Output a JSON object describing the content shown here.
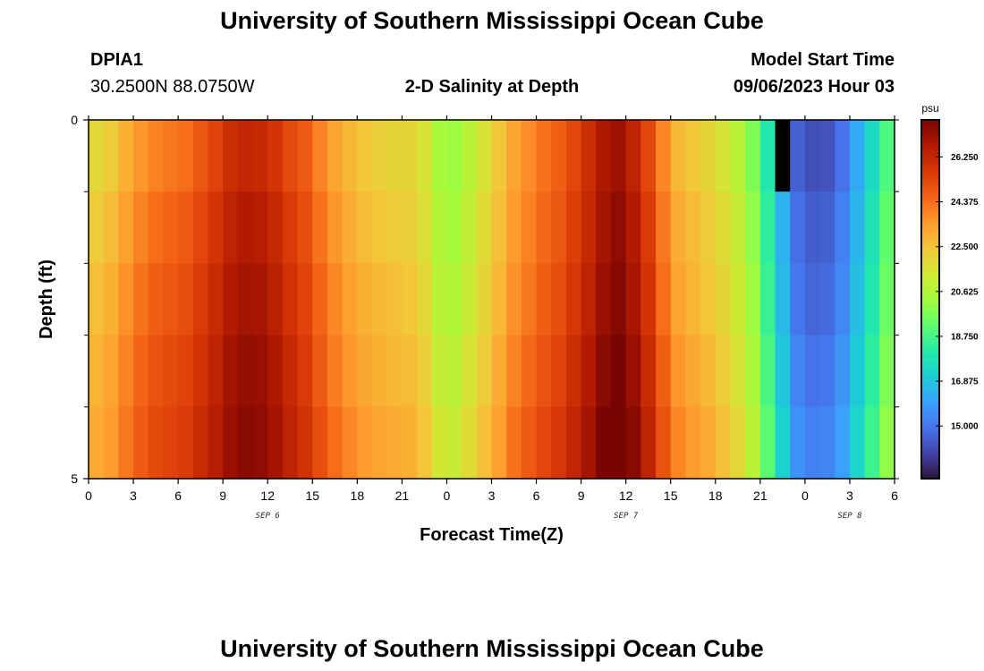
{
  "page": {
    "title_top": "University of Southern Mississippi Ocean Cube",
    "title_bottom": "University of Southern Mississippi Ocean Cube",
    "station_id": "DPIA1",
    "station_coords": "30.2500N  88.0750W",
    "plot_title": "2-D Salinity at Depth",
    "model_start_label": "Model Start Time",
    "model_start_value": "09/06/2023 Hour 03"
  },
  "chart_data": {
    "type": "heatmap",
    "title": "2-D Salinity at Depth",
    "xlabel": "Forecast Time(Z)",
    "ylabel": "Depth (ft)",
    "x_unit": "hours since 09/06/2023 00Z",
    "x_range": [
      0,
      54
    ],
    "y_range": [
      0,
      5
    ],
    "x_tick_values": [
      0,
      3,
      6,
      9,
      12,
      15,
      18,
      21,
      24,
      27,
      30,
      33,
      36,
      39,
      42,
      45,
      48,
      51,
      54
    ],
    "x_tick_labels": [
      "0",
      "3",
      "6",
      "9",
      "12",
      "15",
      "18",
      "21",
      "0",
      "3",
      "6",
      "9",
      "12",
      "15",
      "18",
      "21",
      "0",
      "3",
      "6"
    ],
    "date_labels": [
      {
        "text": "SEP 6",
        "x": 12
      },
      {
        "text": "SEP 7",
        "x": 36
      },
      {
        "text": "SEP 8",
        "x": 51
      }
    ],
    "y_tick_labels": [
      "0",
      "5"
    ],
    "y_tick_values": [
      0,
      5
    ],
    "y_minor_ticks": [
      1,
      2,
      3,
      4
    ],
    "depth_layers": [
      0,
      1,
      2,
      3,
      4
    ],
    "time_step_hours": 1,
    "surface_profile_psu": [
      22.9,
      23.3,
      24.0,
      24.6,
      25.0,
      25.2,
      25.4,
      25.7,
      26.2,
      26.8,
      27.1,
      27.0,
      26.6,
      26.0,
      25.3,
      24.5,
      23.8,
      23.3,
      22.9,
      22.7,
      22.5,
      22.2,
      21.7,
      20.6,
      20.4,
      21.0,
      21.8,
      22.6,
      23.3,
      23.8,
      24.3,
      24.7,
      25.3,
      26.0,
      26.8,
      27.0,
      26.3,
      25.2,
      23.8,
      22.7,
      22.3,
      21.9,
      21.3,
      20.6,
      19.5,
      17.8,
      15.9,
      14.3,
      13.9,
      13.9,
      14.6,
      15.9,
      17.2,
      18.6,
      19.8,
      20.8
    ],
    "depth_offsets_psu": [
      [
        -1.0,
        -0.8,
        -0.5,
        -0.2,
        0.0,
        0.1,
        0.2,
        0.3
      ],
      [
        -0.6,
        -0.4,
        -0.2,
        0.0,
        0.2,
        0.4,
        0.5,
        0.6
      ],
      [
        -0.3,
        -0.1,
        0.1,
        0.2,
        0.4,
        0.6,
        0.7,
        0.8
      ],
      [
        0.0,
        0.2,
        0.3,
        0.5,
        0.7,
        0.9,
        1.0,
        1.1
      ],
      [
        0.2,
        0.4,
        0.6,
        0.8,
        1.0,
        1.2,
        1.3,
        1.4
      ]
    ],
    "depth_offset_segments_hours": [
      0,
      7,
      14,
      21,
      28,
      35,
      42,
      49,
      55
    ],
    "missing_cells": [
      {
        "hour": 46,
        "layer": 0
      }
    ],
    "colorbar": {
      "unit": "psu",
      "min": 12.8,
      "max": 27.8,
      "tick_values": [
        15.0,
        16.875,
        18.75,
        20.625,
        22.5,
        24.375,
        26.25
      ],
      "tick_labels": [
        "15.000",
        "16.875",
        "18.750",
        "20.625",
        "22.500",
        "24.375",
        "26.250"
      ],
      "colors": [
        "#30123b",
        "#4145ab",
        "#4675ed",
        "#39a2fc",
        "#1bcfd4",
        "#24eca6",
        "#61fc6c",
        "#a4fc3b",
        "#d1e834",
        "#f3c63a",
        "#fe9b2d",
        "#f36315",
        "#d93806",
        "#b11901",
        "#7a0403"
      ]
    }
  }
}
